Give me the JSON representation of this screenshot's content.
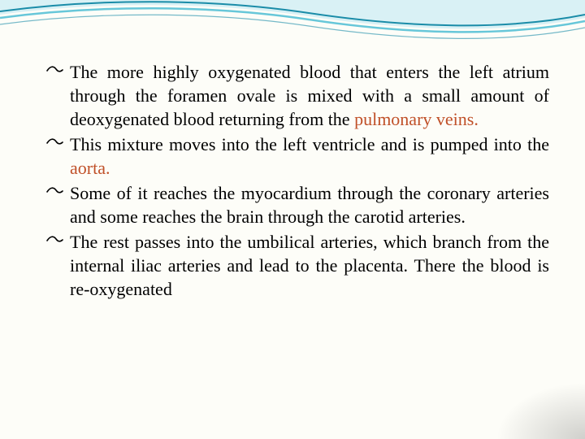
{
  "slide": {
    "background_color": "#fdfdf8",
    "wave": {
      "stroke_outer": "#1a8ca8",
      "stroke_inner": "#67c7d9",
      "fill_light": "#d9f1f5"
    },
    "bullets": [
      {
        "segments": [
          {
            "text": "The more highly oxygenated blood that enters the left atrium through the foramen ovale is mixed with a small amount of deoxygenated blood returning from the ",
            "hl": false
          },
          {
            "text": "pulmonary veins.",
            "hl": true
          }
        ]
      },
      {
        "segments": [
          {
            "text": "This mixture moves into the left ventricle and is pumped into the ",
            "hl": false
          },
          {
            "text": "aorta.",
            "hl": true
          }
        ]
      },
      {
        "segments": [
          {
            "text": "Some of it reaches the myocardium through the coronary arteries and some reaches the brain through the carotid arteries.",
            "hl": false
          }
        ]
      },
      {
        "segments": [
          {
            "text": "The rest passes into the umbilical arteries, which branch from the internal iliac arteries and lead to the placenta. There the blood is re-oxygenated",
            "hl": false
          }
        ]
      }
    ],
    "text_color": "#000000",
    "highlight_color": "#c05028",
    "font_size_pt": 17,
    "bullet_glyph": "f"
  }
}
